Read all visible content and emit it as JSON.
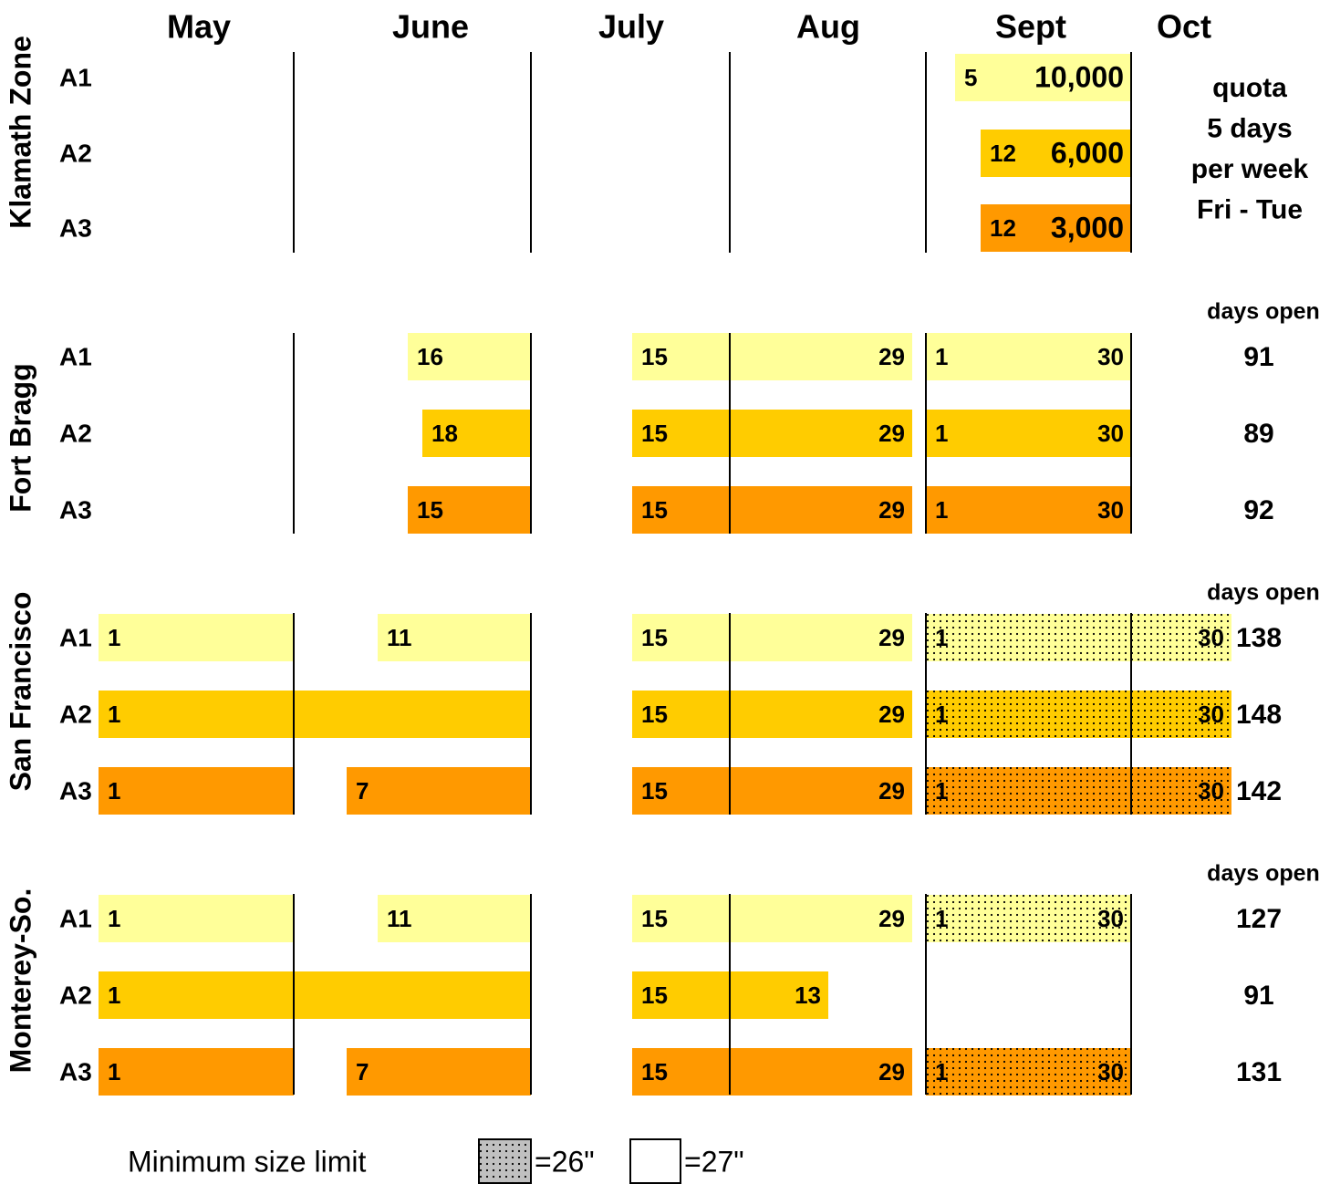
{
  "months": [
    "May",
    "June",
    "July",
    "Aug",
    "Sept",
    "Oct"
  ],
  "row_colors": [
    "#ffff99",
    "#ffcc00",
    "#ff9900"
  ],
  "zones": [
    {
      "name": "Klamath Zone",
      "side_text": [
        "quota",
        "5 days",
        "per week",
        "Fri - Tue"
      ],
      "rows": [
        {
          "label": "A1",
          "segments": [
            {
              "start": "5",
              "end": "10,000"
            }
          ]
        },
        {
          "label": "A2",
          "segments": [
            {
              "start": "12",
              "end": "6,000"
            }
          ]
        },
        {
          "label": "A3",
          "segments": [
            {
              "start": "12",
              "end": "3,000"
            }
          ]
        }
      ]
    },
    {
      "name": "Fort Bragg",
      "side_header": "days open",
      "rows": [
        {
          "label": "A1",
          "total": "91",
          "segments": [
            {
              "start": "16"
            },
            {
              "start": "15",
              "end": "29"
            },
            {
              "start": "1",
              "end": "30"
            }
          ]
        },
        {
          "label": "A2",
          "total": "89",
          "segments": [
            {
              "start": "18"
            },
            {
              "start": "15",
              "end": "29"
            },
            {
              "start": "1",
              "end": "30"
            }
          ]
        },
        {
          "label": "A3",
          "total": "92",
          "segments": [
            {
              "start": "15"
            },
            {
              "start": "15",
              "end": "29"
            },
            {
              "start": "1",
              "end": "30"
            }
          ]
        }
      ]
    },
    {
      "name": "San Francisco",
      "side_header": "days open",
      "rows": [
        {
          "label": "A1",
          "total": "138",
          "segments": [
            {
              "start": "1"
            },
            {
              "start": "11"
            },
            {
              "start": "15",
              "end": "29"
            },
            {
              "start": "1",
              "end": "30"
            }
          ]
        },
        {
          "label": "A2",
          "total": "148",
          "segments": [
            {
              "start": "1"
            },
            {
              "start": "15",
              "end": "29"
            },
            {
              "start": "1",
              "end": "30"
            }
          ]
        },
        {
          "label": "A3",
          "total": "142",
          "segments": [
            {
              "start": "1"
            },
            {
              "start": "7"
            },
            {
              "start": "15",
              "end": "29"
            },
            {
              "start": "1",
              "end": "30"
            }
          ]
        }
      ]
    },
    {
      "name": "Monterey-So.",
      "side_header": "days open",
      "rows": [
        {
          "label": "A1",
          "total": "127",
          "segments": [
            {
              "start": "1"
            },
            {
              "start": "11"
            },
            {
              "start": "15",
              "end": "29"
            },
            {
              "start": "1",
              "end": "30"
            }
          ]
        },
        {
          "label": "A2",
          "total": "91",
          "segments": [
            {
              "start": "1"
            },
            {
              "start": "15",
              "end": "13"
            }
          ]
        },
        {
          "label": "A3",
          "total": "131",
          "segments": [
            {
              "start": "1"
            },
            {
              "start": "7"
            },
            {
              "start": "15",
              "end": "29"
            },
            {
              "start": "1",
              "end": "30"
            }
          ]
        }
      ]
    }
  ],
  "legend": {
    "title": "Minimum size limit",
    "items": [
      "=26\"",
      "=27\""
    ]
  }
}
